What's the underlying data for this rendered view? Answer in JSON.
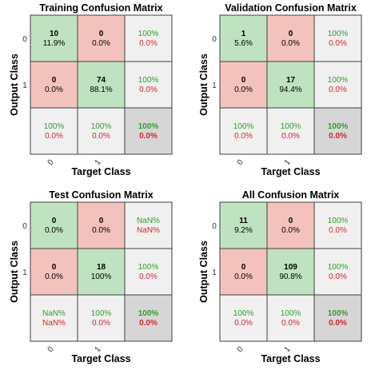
{
  "colors": {
    "correct_cell": "#bfe3c0",
    "wrong_cell": "#f4c2bd",
    "summary_cell": "#f0f0f0",
    "total_cell": "#d6d6d6",
    "green_text": "#2ca02c",
    "red_text": "#d62728"
  },
  "chart_data": [
    {
      "type": "table",
      "title": "Training Confusion Matrix",
      "xlabel": "Target Class",
      "ylabel": "Output Class",
      "x_ticks": [
        "0",
        "1"
      ],
      "y_ticks": [
        "0",
        "1"
      ],
      "cells": [
        [
          {
            "count": "10",
            "pct": "11.9%"
          },
          {
            "count": "0",
            "pct": "0.0%"
          }
        ],
        [
          {
            "count": "0",
            "pct": "0.0%"
          },
          {
            "count": "74",
            "pct": "88.1%"
          }
        ]
      ],
      "row_summary": [
        {
          "good": "100%",
          "bad": "0.0%"
        },
        {
          "good": "100%",
          "bad": "0.0%"
        }
      ],
      "col_summary": [
        {
          "good": "100%",
          "bad": "0.0%"
        },
        {
          "good": "100%",
          "bad": "0.0%"
        }
      ],
      "total": {
        "good": "100%",
        "bad": "0.0%"
      }
    },
    {
      "type": "table",
      "title": "Validation Confusion Matrix",
      "xlabel": "Target Class",
      "ylabel": "Output Class",
      "x_ticks": [
        "0",
        "1"
      ],
      "y_ticks": [
        "0",
        "1"
      ],
      "cells": [
        [
          {
            "count": "1",
            "pct": "5.6%"
          },
          {
            "count": "0",
            "pct": "0.0%"
          }
        ],
        [
          {
            "count": "0",
            "pct": "0.0%"
          },
          {
            "count": "17",
            "pct": "94.4%"
          }
        ]
      ],
      "row_summary": [
        {
          "good": "100%",
          "bad": "0.0%"
        },
        {
          "good": "100%",
          "bad": "0.0%"
        }
      ],
      "col_summary": [
        {
          "good": "100%",
          "bad": "0.0%"
        },
        {
          "good": "100%",
          "bad": "0.0%"
        }
      ],
      "total": {
        "good": "100%",
        "bad": "0.0%"
      }
    },
    {
      "type": "table",
      "title": "Test Confusion Matrix",
      "xlabel": "Target Class",
      "ylabel": "Output Class",
      "x_ticks": [
        "0",
        "1"
      ],
      "y_ticks": [
        "0",
        "1"
      ],
      "cells": [
        [
          {
            "count": "0",
            "pct": "0.0%"
          },
          {
            "count": "0",
            "pct": "0.0%"
          }
        ],
        [
          {
            "count": "0",
            "pct": "0.0%"
          },
          {
            "count": "18",
            "pct": "100%"
          }
        ]
      ],
      "row_summary": [
        {
          "good": "NaN%",
          "bad": "NaN%"
        },
        {
          "good": "100%",
          "bad": "0.0%"
        }
      ],
      "col_summary": [
        {
          "good": "NaN%",
          "bad": "NaN%"
        },
        {
          "good": "100%",
          "bad": "0.0%"
        }
      ],
      "total": {
        "good": "100%",
        "bad": "0.0%"
      }
    },
    {
      "type": "table",
      "title": "All Confusion Matrix",
      "xlabel": "Target Class",
      "ylabel": "Output Class",
      "x_ticks": [
        "0",
        "1"
      ],
      "y_ticks": [
        "0",
        "1"
      ],
      "cells": [
        [
          {
            "count": "11",
            "pct": "9.2%"
          },
          {
            "count": "0",
            "pct": "0.0%"
          }
        ],
        [
          {
            "count": "0",
            "pct": "0.0%"
          },
          {
            "count": "109",
            "pct": "90.8%"
          }
        ]
      ],
      "row_summary": [
        {
          "good": "100%",
          "bad": "0.0%"
        },
        {
          "good": "100%",
          "bad": "0.0%"
        }
      ],
      "col_summary": [
        {
          "good": "100%",
          "bad": "0.0%"
        },
        {
          "good": "100%",
          "bad": "0.0%"
        }
      ],
      "total": {
        "good": "100%",
        "bad": "0.0%"
      }
    }
  ]
}
